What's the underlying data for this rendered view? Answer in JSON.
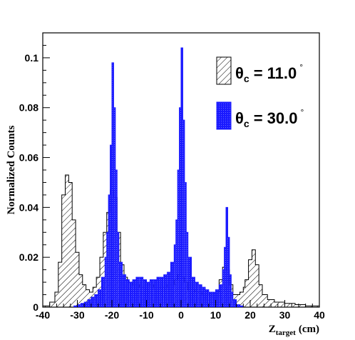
{
  "chart_data": {
    "type": "bar",
    "subtype": "histogram",
    "title": "",
    "xlabel": "Z",
    "xlabel_subscript": "target",
    "xlabel_unit": "(cm)",
    "ylabel": "Normalized Counts",
    "xlim": [
      -40,
      40
    ],
    "ylim": [
      0,
      0.11
    ],
    "xticks": [
      -40,
      -30,
      -20,
      -10,
      0,
      10,
      20,
      30,
      40
    ],
    "yticks": [
      0,
      0.02,
      0.04,
      0.06,
      0.08,
      0.1
    ],
    "ytick_labels": [
      "0",
      "0.02",
      "0.04",
      "0.06",
      "0.08",
      "0.1"
    ],
    "legend_position": "top-right",
    "grid": false,
    "series": [
      {
        "name": "θc = 11.0°",
        "legend_symbol": "θ",
        "legend_subscript": "c",
        "legend_value": "= 11.0",
        "legend_superscript": "°",
        "style": "hatched",
        "color": "#000000",
        "x": [
          -40,
          -38,
          -36.5,
          -35.5,
          -34.5,
          -33.5,
          -32.5,
          -31.5,
          -30.5,
          -29.5,
          -28.5,
          -27.5,
          -26.5,
          -25.5,
          -24.5,
          -23.5,
          -22.5,
          -21.5,
          -20.5,
          -19.5,
          -18.5,
          -17.5,
          -16.5,
          -15.5,
          -14,
          -12,
          -10,
          -8,
          -6,
          -4,
          -2,
          -1,
          0,
          1,
          2,
          4,
          6,
          8,
          10,
          11,
          12,
          13,
          14,
          15,
          16,
          17,
          18,
          18.5,
          19.5,
          20.5,
          21.5,
          22.5,
          23.5,
          25,
          27,
          30,
          33,
          36,
          40
        ],
        "values": [
          0.0005,
          0.002,
          0.006,
          0.018,
          0.045,
          0.053,
          0.05,
          0.035,
          0.022,
          0.013,
          0.009,
          0.007,
          0.006,
          0.008,
          0.012,
          0.02,
          0.03,
          0.038,
          0.047,
          0.044,
          0.03,
          0.017,
          0.012,
          0.01,
          0.009,
          0.008,
          0.009,
          0.008,
          0.008,
          0.009,
          0.011,
          0.013,
          0.012,
          0.01,
          0.007,
          0.006,
          0.005,
          0.005,
          0.006,
          0.011,
          0.016,
          0.015,
          0.009,
          0.005,
          0.005,
          0.006,
          0.008,
          0.011,
          0.019,
          0.023,
          0.017,
          0.009,
          0.005,
          0.003,
          0.002,
          0.0015,
          0.001,
          0.0005,
          0.0003
        ]
      },
      {
        "name": "θc = 30.0°",
        "legend_symbol": "θ",
        "legend_subscript": "c",
        "legend_value": "= 30.0",
        "legend_superscript": "°",
        "style": "filled",
        "color": "#1a1aff",
        "x": [
          -31,
          -30,
          -29,
          -28,
          -27,
          -26,
          -25,
          -24,
          -23,
          -22,
          -21.5,
          -21,
          -20.5,
          -20,
          -19.5,
          -19,
          -18.5,
          -18,
          -17,
          -16,
          -15,
          -14,
          -13,
          -12,
          -11,
          -10,
          -9,
          -8,
          -7,
          -6,
          -5,
          -4,
          -3,
          -2,
          -1.5,
          -1,
          -0.5,
          0,
          0.5,
          1,
          1.5,
          2,
          3,
          4,
          5,
          6,
          7,
          8,
          9,
          10,
          11,
          12,
          12.5,
          13,
          13.5,
          14,
          14.5,
          15,
          16,
          17
        ],
        "values": [
          0.0005,
          0.001,
          0.0015,
          0.002,
          0.003,
          0.004,
          0.005,
          0.007,
          0.012,
          0.02,
          0.03,
          0.045,
          0.065,
          0.098,
          0.08,
          0.055,
          0.03,
          0.018,
          0.013,
          0.011,
          0.01,
          0.011,
          0.012,
          0.012,
          0.011,
          0.01,
          0.011,
          0.011,
          0.012,
          0.012,
          0.013,
          0.014,
          0.018,
          0.025,
          0.035,
          0.055,
          0.08,
          0.104,
          0.075,
          0.05,
          0.03,
          0.02,
          0.012,
          0.01,
          0.009,
          0.008,
          0.007,
          0.006,
          0.006,
          0.007,
          0.009,
          0.015,
          0.024,
          0.04,
          0.028,
          0.013,
          0.006,
          0.003,
          0.001,
          0.0005
        ]
      }
    ]
  }
}
